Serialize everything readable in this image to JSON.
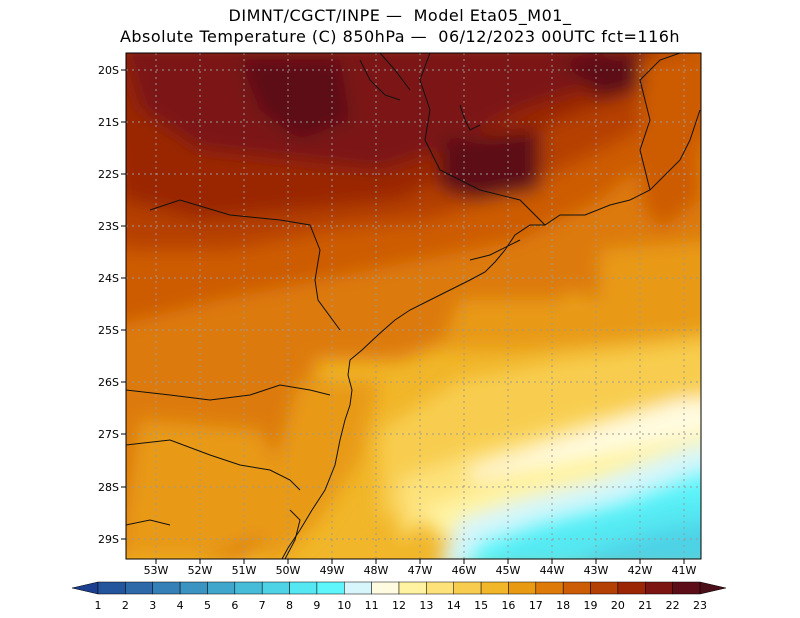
{
  "title_line1": "DIMNT/CGCT/INPE —  Model Eta05_M01_",
  "title_line2": "Absolute Temperature (C) 850hPa —  06/12/2023 00UTC fct=116h",
  "lat_labels": [
    "20S",
    "21S",
    "22S",
    "23S",
    "24S",
    "25S",
    "26S",
    "27S",
    "28S",
    "29S"
  ],
  "lon_labels": [
    "53W",
    "52W",
    "51W",
    "50W",
    "49W",
    "48W",
    "47W",
    "46W",
    "45W",
    "44W",
    "43W",
    "42W",
    "41W"
  ],
  "colorbar": {
    "labels": [
      "1",
      "2",
      "3",
      "4",
      "5",
      "6",
      "7",
      "8",
      "9",
      "10",
      "11",
      "12",
      "13",
      "14",
      "15",
      "16",
      "17",
      "18",
      "19",
      "20",
      "21",
      "22",
      "23"
    ],
    "colors": [
      "#1c3f8f",
      "#24549b",
      "#2d69a8",
      "#3580b6",
      "#3b93c2",
      "#40a6cc",
      "#47bcd9",
      "#4ed2e6",
      "#55e8f2",
      "#5ef5fb",
      "#d6f6fb",
      "#fffbe0",
      "#fff3a1",
      "#fde27a",
      "#f8cd4f",
      "#f1b629",
      "#e89a12",
      "#dd7a08",
      "#cd5c06",
      "#b54005",
      "#9a2606",
      "#7c1512",
      "#5c0d17"
    ],
    "under_color": "#1c3f8f",
    "over_color": "#4a0f18"
  }
}
